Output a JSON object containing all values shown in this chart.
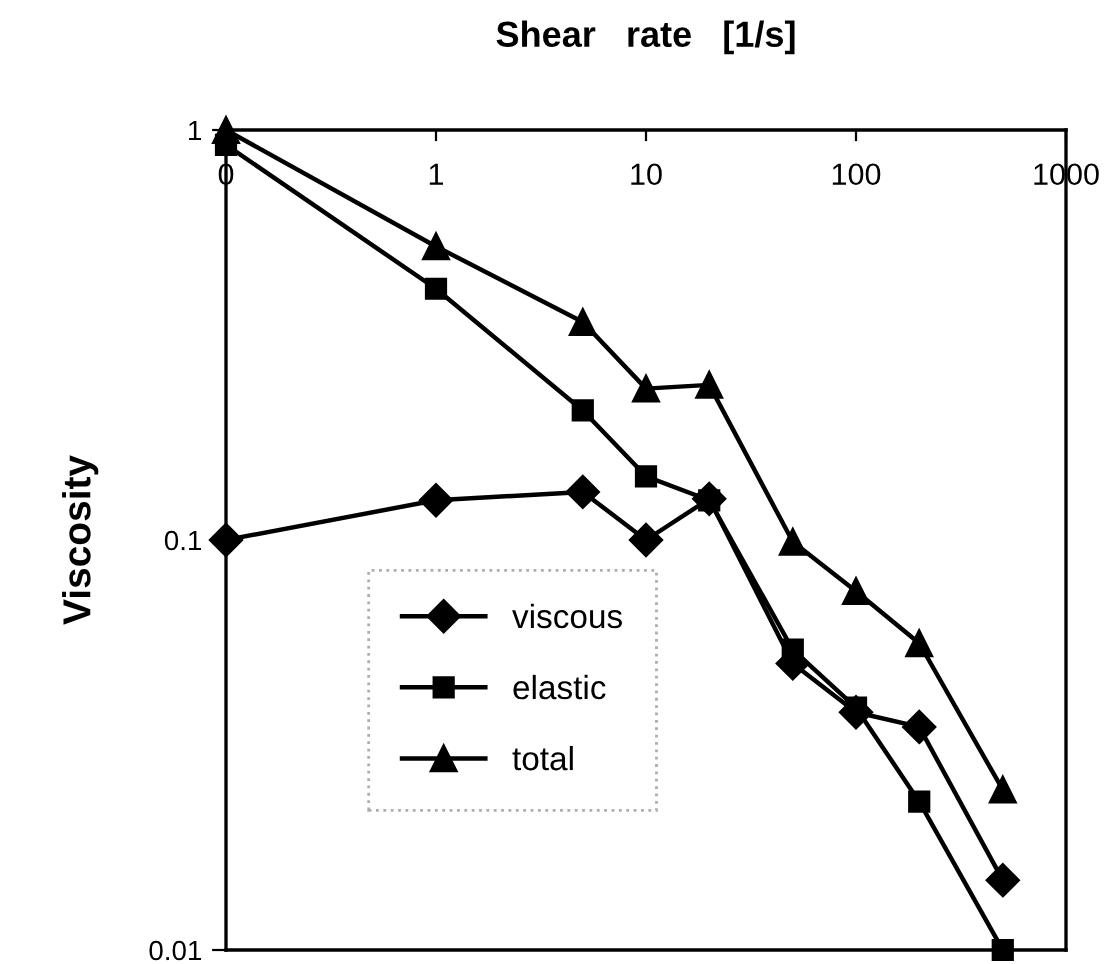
{
  "chart_data": {
    "type": "line",
    "xlabel": "Shear   rate   [1/s]",
    "ylabel": "Viscosity",
    "x": [
      0.1,
      1,
      5,
      10,
      20,
      50,
      100,
      200,
      500
    ],
    "series": [
      {
        "name": "viscous",
        "color": "#000000",
        "marker": "diamond",
        "values": [
          0.1,
          0.125,
          0.131,
          0.1,
          0.126,
          0.05,
          0.038,
          0.035,
          0.0148
        ]
      },
      {
        "name": "elastic",
        "color": "#000000",
        "marker": "square",
        "values": [
          0.92,
          0.41,
          0.207,
          0.143,
          0.125,
          0.054,
          0.039,
          0.023,
          0.01
        ]
      },
      {
        "name": "total",
        "color": "#000000",
        "marker": "triangle",
        "values": [
          1.0,
          0.52,
          0.34,
          0.234,
          0.239,
          0.099,
          0.075,
          0.056,
          0.0246
        ]
      }
    ],
    "log": "xy",
    "xlim": [
      0.1,
      1000
    ],
    "ylim": [
      0.01,
      1
    ],
    "xticks": [
      {
        "value": 0.1,
        "label": "0"
      },
      1,
      10,
      100,
      1000
    ],
    "yticks": [
      0.01,
      0.1,
      1
    ],
    "grid": false,
    "legend": "bottom left",
    "line_style": "solid"
  }
}
